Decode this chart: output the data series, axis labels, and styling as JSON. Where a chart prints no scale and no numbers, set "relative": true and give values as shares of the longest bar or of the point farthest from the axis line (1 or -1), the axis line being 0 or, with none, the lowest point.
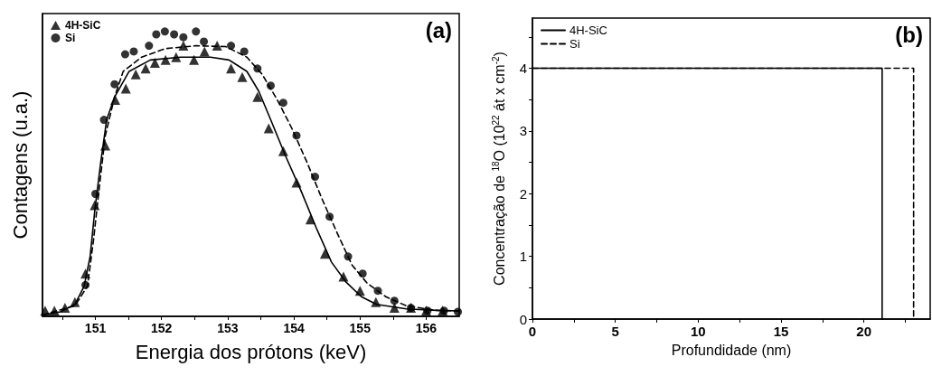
{
  "chart_data": [
    {
      "type": "scatter",
      "relative": true,
      "xlabel": "Energia dos prótons (keV)",
      "ylabel": "Contagens (u.a.)",
      "annotations": [
        "(a)"
      ],
      "legend": "top left",
      "grid": false,
      "xlim": [
        150.2,
        156.5
      ],
      "xticks": [
        {
          "value": 150.5,
          "label": null
        },
        151,
        {
          "value": 151.5,
          "label": null
        },
        152,
        {
          "value": 152.5,
          "label": null
        },
        153,
        {
          "value": 153.5,
          "label": null
        },
        154,
        {
          "value": 154.5,
          "label": null
        },
        155,
        {
          "value": 155.5,
          "label": null
        },
        156
      ],
      "series": [
        {
          "name": "4H-SiC",
          "type": "scatter",
          "marker": "triangle",
          "color": "#000000",
          "x": [
            150.24,
            150.38,
            150.54,
            150.69,
            150.85,
            150.99,
            151.15,
            151.3,
            151.46,
            151.61,
            151.76,
            151.9,
            152.06,
            152.22,
            152.33,
            152.49,
            152.65,
            152.84,
            153.05,
            153.22,
            153.45,
            153.62,
            153.84,
            154.04,
            154.25,
            154.47,
            154.75,
            155.0,
            155.24,
            155.52,
            155.77,
            156.0,
            156.25
          ],
          "values": [
            0.02,
            0.02,
            0.03,
            0.05,
            0.15,
            0.39,
            0.6,
            0.76,
            0.8,
            0.85,
            0.87,
            0.89,
            0.9,
            0.91,
            0.95,
            0.9,
            0.93,
            0.95,
            0.87,
            0.84,
            0.77,
            0.66,
            0.58,
            0.47,
            0.34,
            0.22,
            0.14,
            0.09,
            0.05,
            0.03,
            0.03,
            0.02,
            0.02
          ]
        },
        {
          "name": "Si",
          "type": "scatter",
          "marker": "circle",
          "color": "#000000",
          "x": [
            150.85,
            151.0,
            151.13,
            151.29,
            151.45,
            151.58,
            151.81,
            151.92,
            152.05,
            152.19,
            152.33,
            152.52,
            152.64,
            153.05,
            153.25,
            153.45,
            153.65,
            153.84,
            154.04,
            154.32,
            154.54,
            154.82,
            155.04,
            155.27,
            155.52,
            155.77,
            156.02,
            156.27,
            156.48
          ],
          "values": [
            0.11,
            0.43,
            0.69,
            0.815,
            0.92,
            0.93,
            0.95,
            0.99,
            1.0,
            0.99,
            0.98,
            1.0,
            0.965,
            0.95,
            0.93,
            0.87,
            0.81,
            0.75,
            0.635,
            0.49,
            0.35,
            0.21,
            0.15,
            0.09,
            0.055,
            0.03,
            0.02,
            0.02,
            0.016
          ]
        },
        {
          "type": "line",
          "line_style": "solid",
          "marker": "none",
          "color": "#000000",
          "x": [
            150.2,
            150.47,
            150.69,
            150.83,
            150.92,
            150.99,
            151.08,
            151.17,
            151.29,
            151.51,
            151.83,
            152.29,
            152.74,
            153.02,
            153.29,
            153.47,
            153.65,
            153.88,
            154.11,
            154.34,
            154.57,
            154.79,
            155.02,
            155.25,
            155.7,
            156.16,
            156.5
          ],
          "values": [
            0.005,
            0.016,
            0.042,
            0.106,
            0.21,
            0.37,
            0.54,
            0.69,
            0.77,
            0.86,
            0.9,
            0.91,
            0.91,
            0.9,
            0.86,
            0.79,
            0.69,
            0.56,
            0.44,
            0.31,
            0.19,
            0.12,
            0.069,
            0.042,
            0.026,
            0.021,
            0.019
          ]
        },
        {
          "type": "line",
          "line_style": "dashed",
          "marker": "none",
          "color": "#000000",
          "x": [
            150.2,
            150.69,
            150.88,
            150.97,
            151.06,
            151.15,
            151.29,
            151.42,
            151.7,
            152.06,
            152.52,
            152.97,
            153.29,
            153.52,
            153.75,
            153.97,
            154.2,
            154.43,
            154.66,
            154.88,
            155.11,
            155.39,
            155.7,
            156.16,
            156.5
          ],
          "values": [
            0.005,
            0.037,
            0.106,
            0.265,
            0.455,
            0.635,
            0.77,
            0.86,
            0.91,
            0.94,
            0.95,
            0.947,
            0.91,
            0.85,
            0.76,
            0.66,
            0.54,
            0.41,
            0.29,
            0.18,
            0.116,
            0.069,
            0.037,
            0.021,
            0.019
          ]
        }
      ]
    },
    {
      "type": "line",
      "xlabel": "Profundidade (nm)",
      "ylabel": "Concentração de $^{18}$O (10$^{22}$ át x cm$^{-2}$)",
      "annotations": [
        "(b)"
      ],
      "legend": "top left",
      "grid": false,
      "marker": "none",
      "xlim": [
        0,
        24
      ],
      "xticks": [
        0,
        {
          "value": 2.5,
          "label": null
        },
        5,
        {
          "value": 7.5,
          "label": null
        },
        10,
        {
          "value": 12.5,
          "label": null
        },
        15,
        {
          "value": 17.5,
          "label": null
        },
        20,
        {
          "value": 22.5,
          "label": null
        }
      ],
      "ylim": [
        0,
        4.8
      ],
      "yticks": [
        0,
        {
          "value": 0.5,
          "label": null
        },
        1,
        {
          "value": 1.5,
          "label": null
        },
        2,
        {
          "value": 2.5,
          "label": null
        },
        3,
        {
          "value": 3.5,
          "label": null
        },
        4,
        {
          "value": 4.5,
          "label": null
        }
      ],
      "series": [
        {
          "name": "4H-SiC",
          "line_style": "solid",
          "color": "#000000",
          "x": [
            0,
            21.1,
            21.1
          ],
          "values": [
            4,
            4,
            0
          ]
        },
        {
          "name": "Si",
          "line_style": "dashed",
          "color": "#000000",
          "x": [
            0,
            23.0,
            23.0
          ],
          "values": [
            4,
            4,
            0
          ]
        }
      ]
    }
  ]
}
